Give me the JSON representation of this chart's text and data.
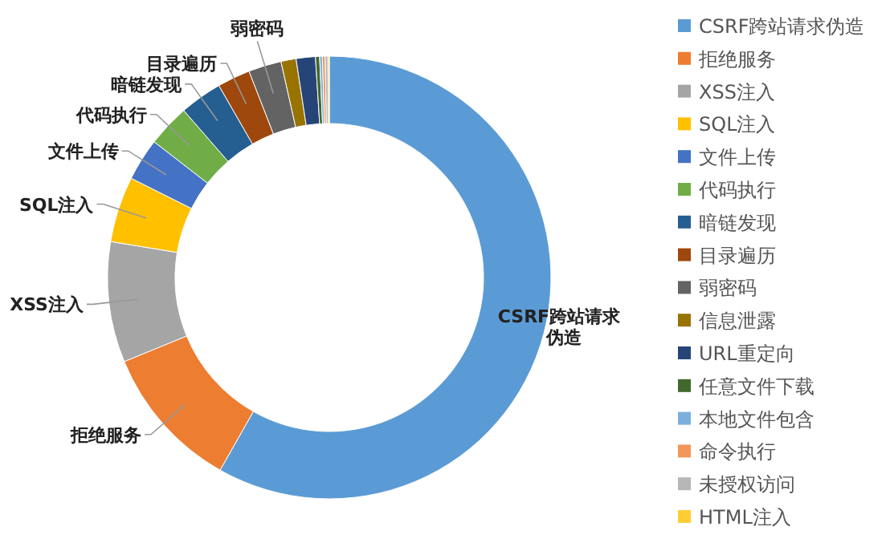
{
  "chart_data": {
    "type": "donut",
    "legend": "right",
    "categories": [
      "CSRF跨站请求伪造",
      "拒绝服务",
      "XSS注入",
      "SQL注入",
      "文件上传",
      "代码执行",
      "暗链发现",
      "目录遍历",
      "弱密码",
      "信息泄露",
      "URL重定向",
      "任意文件下载",
      "本地文件包含",
      "命令执行",
      "未授权访问",
      "HTML注入"
    ],
    "values": [
      58.2,
      10.6,
      8.8,
      4.8,
      3.1,
      3.1,
      3.1,
      2.4,
      2.4,
      1.1,
      1.4,
      0.3,
      0.2,
      0.2,
      0.2,
      0.1
    ],
    "colors": [
      "#5b9bd5",
      "#ed7d31",
      "#a5a5a5",
      "#ffc000",
      "#4472c4",
      "#70ad47",
      "#255e91",
      "#9e480e",
      "#636363",
      "#997300",
      "#264478",
      "#43682b",
      "#7cafdd",
      "#f1975a",
      "#b7b7b7",
      "#ffcd33"
    ]
  }
}
